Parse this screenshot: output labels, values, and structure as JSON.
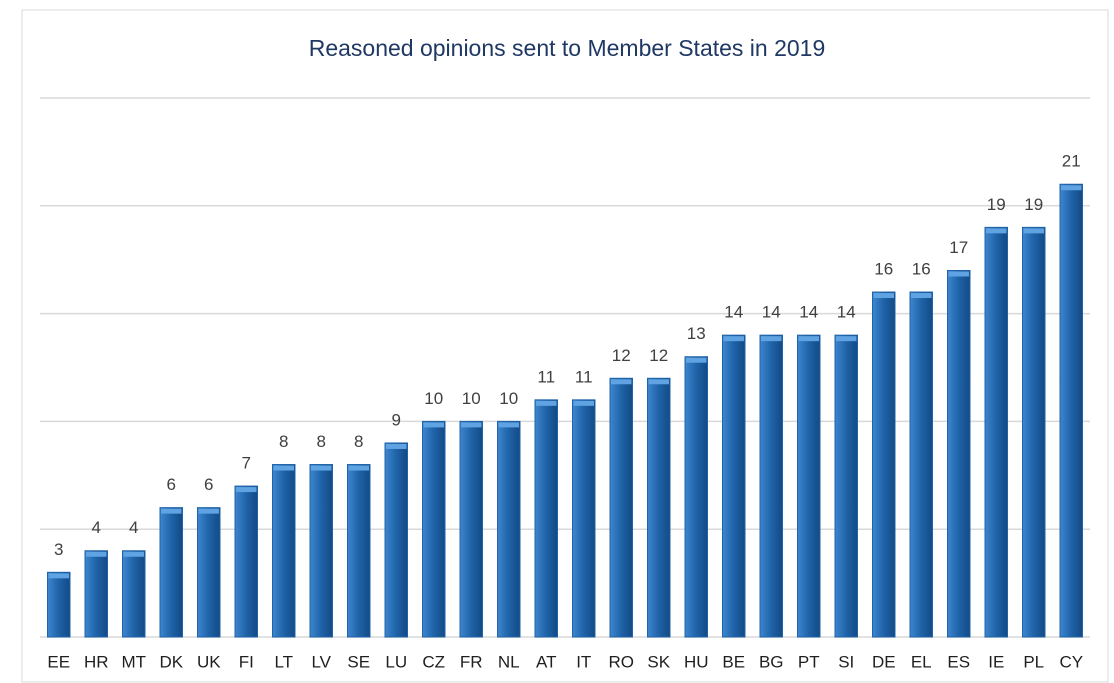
{
  "chart_data": {
    "type": "bar",
    "title": "Reasoned opinions sent to Member States in 2019",
    "categories": [
      "EE",
      "HR",
      "MT",
      "DK",
      "UK",
      "FI",
      "LT",
      "LV",
      "SE",
      "LU",
      "CZ",
      "FR",
      "NL",
      "AT",
      "IT",
      "RO",
      "SK",
      "HU",
      "BE",
      "BG",
      "PT",
      "SI",
      "DE",
      "EL",
      "ES",
      "IE",
      "PL",
      "CY"
    ],
    "values": [
      3,
      4,
      4,
      6,
      6,
      7,
      8,
      8,
      8,
      9,
      10,
      10,
      10,
      11,
      11,
      12,
      12,
      13,
      14,
      14,
      14,
      14,
      16,
      16,
      17,
      19,
      19,
      21
    ],
    "color": "#1f63a8",
    "ylim": [
      0,
      25
    ],
    "yticks": [
      0,
      5,
      10,
      15,
      20,
      25
    ],
    "grid": true
  }
}
